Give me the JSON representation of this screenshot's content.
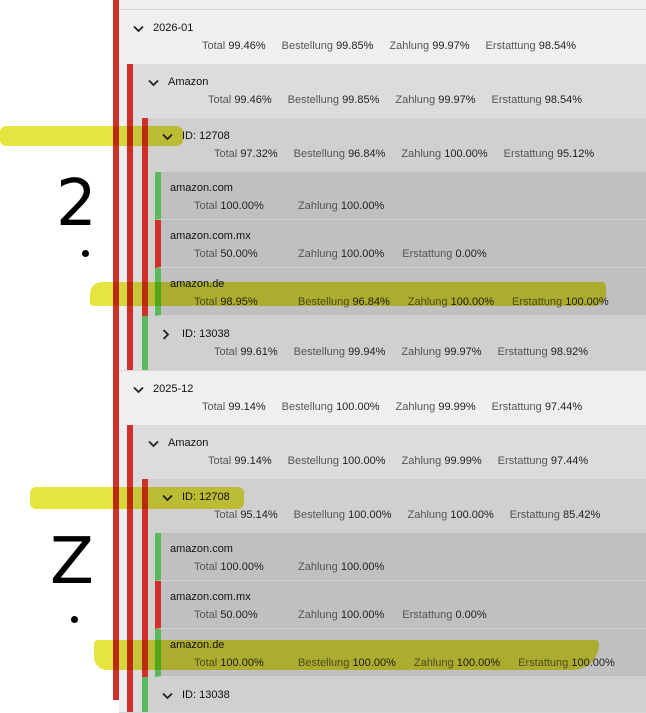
{
  "colors": {
    "fail": "#d0302b",
    "ok": "#5cb85c",
    "highlight": "#d4d400"
  },
  "annotations": {
    "mark1": "2",
    "mark2": "Z"
  },
  "tree": [
    {
      "title": "2026-01",
      "expanded": true,
      "status": "fail",
      "metrics": [
        {
          "label": "Total",
          "value": "99.46%"
        },
        {
          "label": "Bestellung",
          "value": "99.85%"
        },
        {
          "label": "Zahlung",
          "value": "99.97%"
        },
        {
          "label": "Erstattung",
          "value": "98.54%"
        }
      ],
      "children": [
        {
          "title": "Amazon",
          "expanded": true,
          "status": "fail",
          "metrics": [
            {
              "label": "Total",
              "value": "99.46%"
            },
            {
              "label": "Bestellung",
              "value": "99.85%"
            },
            {
              "label": "Zahlung",
              "value": "99.97%"
            },
            {
              "label": "Erstattung",
              "value": "98.54%"
            }
          ],
          "children": [
            {
              "title": "ID: 12708",
              "expanded": true,
              "status": "fail",
              "metrics": [
                {
                  "label": "Total",
                  "value": "97.32%"
                },
                {
                  "label": "Bestellung",
                  "value": "96.84%"
                },
                {
                  "label": "Zahlung",
                  "value": "100.00%"
                },
                {
                  "label": "Erstattung",
                  "value": "95.12%"
                }
              ],
              "children": [
                {
                  "title": "amazon.com",
                  "status": "ok",
                  "metrics": [
                    {
                      "label": "Total",
                      "value": "100.00%"
                    },
                    {
                      "label": "Zahlung",
                      "value": "100.00%"
                    }
                  ]
                },
                {
                  "title": "amazon.com.mx",
                  "status": "fail",
                  "metrics": [
                    {
                      "label": "Total",
                      "value": "50.00%"
                    },
                    {
                      "label": "Zahlung",
                      "value": "100.00%"
                    },
                    {
                      "label": "Erstattung",
                      "value": "0.00%"
                    }
                  ]
                },
                {
                  "title": "amazon.de",
                  "status": "ok",
                  "metrics": [
                    {
                      "label": "Total",
                      "value": "98.95%"
                    },
                    {
                      "label": "Bestellung",
                      "value": "96.84%"
                    },
                    {
                      "label": "Zahlung",
                      "value": "100.00%"
                    },
                    {
                      "label": "Erstattung",
                      "value": "100.00%"
                    }
                  ]
                }
              ]
            },
            {
              "title": "ID: 13038",
              "expanded": false,
              "status": "ok",
              "metrics": [
                {
                  "label": "Total",
                  "value": "99.61%"
                },
                {
                  "label": "Bestellung",
                  "value": "99.94%"
                },
                {
                  "label": "Zahlung",
                  "value": "99.97%"
                },
                {
                  "label": "Erstattung",
                  "value": "98.92%"
                }
              ],
              "children": []
            }
          ]
        }
      ]
    },
    {
      "title": "2025-12",
      "expanded": true,
      "status": "fail",
      "metrics": [
        {
          "label": "Total",
          "value": "99.14%"
        },
        {
          "label": "Bestellung",
          "value": "100.00%"
        },
        {
          "label": "Zahlung",
          "value": "99.99%"
        },
        {
          "label": "Erstattung",
          "value": "97.44%"
        }
      ],
      "children": [
        {
          "title": "Amazon",
          "expanded": true,
          "status": "fail",
          "metrics": [
            {
              "label": "Total",
              "value": "99.14%"
            },
            {
              "label": "Bestellung",
              "value": "100.00%"
            },
            {
              "label": "Zahlung",
              "value": "99.99%"
            },
            {
              "label": "Erstattung",
              "value": "97.44%"
            }
          ],
          "children": [
            {
              "title": "ID: 12708",
              "expanded": true,
              "status": "fail",
              "metrics": [
                {
                  "label": "Total",
                  "value": "95.14%"
                },
                {
                  "label": "Bestellung",
                  "value": "100.00%"
                },
                {
                  "label": "Zahlung",
                  "value": "100.00%"
                },
                {
                  "label": "Erstattung",
                  "value": "85.42%"
                }
              ],
              "children": [
                {
                  "title": "amazon.com",
                  "status": "ok",
                  "metrics": [
                    {
                      "label": "Total",
                      "value": "100.00%"
                    },
                    {
                      "label": "Zahlung",
                      "value": "100.00%"
                    }
                  ]
                },
                {
                  "title": "amazon.com.mx",
                  "status": "fail",
                  "metrics": [
                    {
                      "label": "Total",
                      "value": "50.00%"
                    },
                    {
                      "label": "Zahlung",
                      "value": "100.00%"
                    },
                    {
                      "label": "Erstattung",
                      "value": "0.00%"
                    }
                  ]
                },
                {
                  "title": "amazon.de",
                  "status": "ok",
                  "metrics": [
                    {
                      "label": "Total",
                      "value": "100.00%"
                    },
                    {
                      "label": "Bestellung",
                      "value": "100.00%"
                    },
                    {
                      "label": "Zahlung",
                      "value": "100.00%"
                    },
                    {
                      "label": "Erstattung",
                      "value": "100.00%"
                    }
                  ]
                }
              ]
            },
            {
              "title": "ID: 13038",
              "expanded": true,
              "status": "ok",
              "metrics": [],
              "children": []
            }
          ]
        }
      ]
    }
  ]
}
